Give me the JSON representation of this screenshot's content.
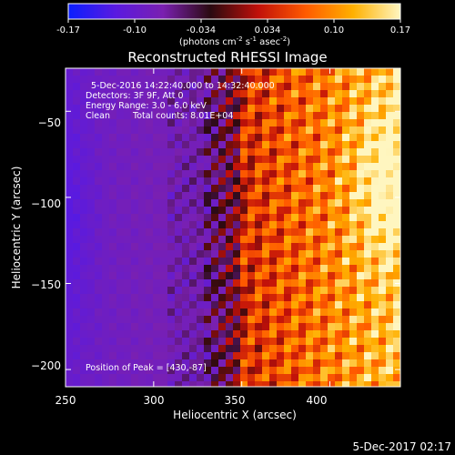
{
  "colorbar": {
    "ticks": [
      "-0.17",
      "-0.10",
      "-0.034",
      "0.034",
      "0.10",
      "0.17"
    ],
    "unit_label": "(photons cm",
    "unit_sup1": "-2",
    "unit_mid": " s",
    "unit_sup2": "-1",
    "unit_mid2": " asec",
    "unit_sup3": "-2",
    "unit_end": ")",
    "stops": [
      "#0a1eff",
      "#5a1ae0",
      "#7a20b0",
      "#2a0a10",
      "#c0100a",
      "#ff5a00",
      "#ffb000",
      "#fff6c0"
    ]
  },
  "chart_data": {
    "type": "heatmap",
    "title": "Reconstructed RHESSI Image",
    "xlabel": "Heliocentric X (arcsec)",
    "ylabel": "Heliocentric Y (arcsec)",
    "xlim": [
      250,
      440
    ],
    "ylim": [
      -210,
      -25
    ],
    "x_ticks": [
      250,
      300,
      350,
      400
    ],
    "y_ticks": [
      -50,
      -100,
      -150,
      -200
    ],
    "x_tick_labels": [
      "250",
      "300",
      "350",
      "400"
    ],
    "y_tick_labels": [
      "−50",
      "−100",
      "−150",
      "−200"
    ],
    "color_range": [
      -0.17,
      0.17
    ],
    "peak_position": [
      430,
      -87
    ],
    "annotations": {
      "line1": "5-Dec-2016 14:22:40.000 to 14:32:40.000",
      "line2": "Detectors: 3F 9F, Att 0",
      "line3": "Energy Range: 3.0 - 6.0 keV",
      "line4a": "Clean",
      "line4b": "Total counts: 8.01E+04",
      "peak": "Position of Peak = [430,-87]"
    }
  },
  "footer": {
    "timestamp": "5-Dec-2017 02:17"
  }
}
